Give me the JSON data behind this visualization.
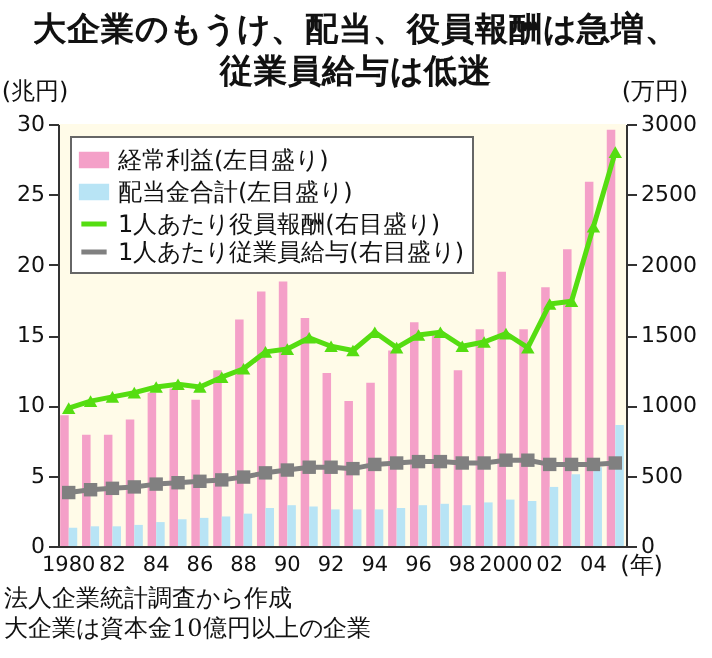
{
  "chart_data": {
    "type": "bar",
    "title": "大企業のもうけ、配当、役員報酬は急増、従業員給与は低迷",
    "categories": [
      "1980",
      null,
      "82",
      null,
      "84",
      null,
      "86",
      null,
      "88",
      null,
      "90",
      null,
      "92",
      null,
      "94",
      null,
      "96",
      null,
      "98",
      null,
      "2000",
      null,
      "02",
      null,
      "04",
      null
    ],
    "xlabel": "(年)",
    "ylabel": "(兆円)",
    "y2label": "(万円)",
    "ylim": [
      0,
      30
    ],
    "yticks": [
      0,
      5,
      10,
      15,
      20,
      25,
      30
    ],
    "y2lim": [
      0,
      3000
    ],
    "y2ticks": [
      0,
      500,
      1000,
      1500,
      2000,
      2500,
      3000
    ],
    "legend": "top left",
    "series": [
      {
        "name": "経常利益(左目盛り)",
        "color": "#f4a0c8",
        "values": [
          9.3,
          7.9,
          7.9,
          9.0,
          10.9,
          11.2,
          10.4,
          12.5,
          16.1,
          18.1,
          18.8,
          16.2,
          12.3,
          10.3,
          11.6,
          13.9,
          15.9,
          15.1,
          12.5,
          15.4,
          19.5,
          15.4,
          18.4,
          21.1,
          25.9,
          29.6
        ]
      },
      {
        "name": "配当金合計(左目盛り)",
        "color": "#b8e4f5",
        "values": [
          1.3,
          1.4,
          1.4,
          1.5,
          1.7,
          1.9,
          2.0,
          2.1,
          2.3,
          2.7,
          2.9,
          2.8,
          2.6,
          2.6,
          2.6,
          2.7,
          2.9,
          3.0,
          2.9,
          3.1,
          3.3,
          3.2,
          4.2,
          5.1,
          5.6,
          8.6
        ]
      },
      {
        "name": "1人あたり役員報酬(右目盛り)",
        "type": "line",
        "axis": "y2",
        "marker": "triangle",
        "color": "#55dd11",
        "values": [
          980,
          1030,
          1060,
          1090,
          1130,
          1150,
          1130,
          1200,
          1260,
          1380,
          1400,
          1480,
          1420,
          1390,
          1520,
          1410,
          1500,
          1520,
          1420,
          1450,
          1510,
          1410,
          1720,
          1740,
          2270,
          2800
        ]
      },
      {
        "name": "1人あたり従業員給与(右目盛り)",
        "type": "line",
        "axis": "y2",
        "marker": "square",
        "color": "#808080",
        "values": [
          380,
          400,
          410,
          420,
          440,
          450,
          460,
          470,
          490,
          520,
          540,
          560,
          560,
          550,
          580,
          590,
          600,
          600,
          590,
          590,
          610,
          610,
          580,
          580,
          580,
          590
        ]
      }
    ],
    "annotations": [
      "法人企業統計調査から作成",
      "大企業は資本金10億円以上の企業"
    ]
  }
}
